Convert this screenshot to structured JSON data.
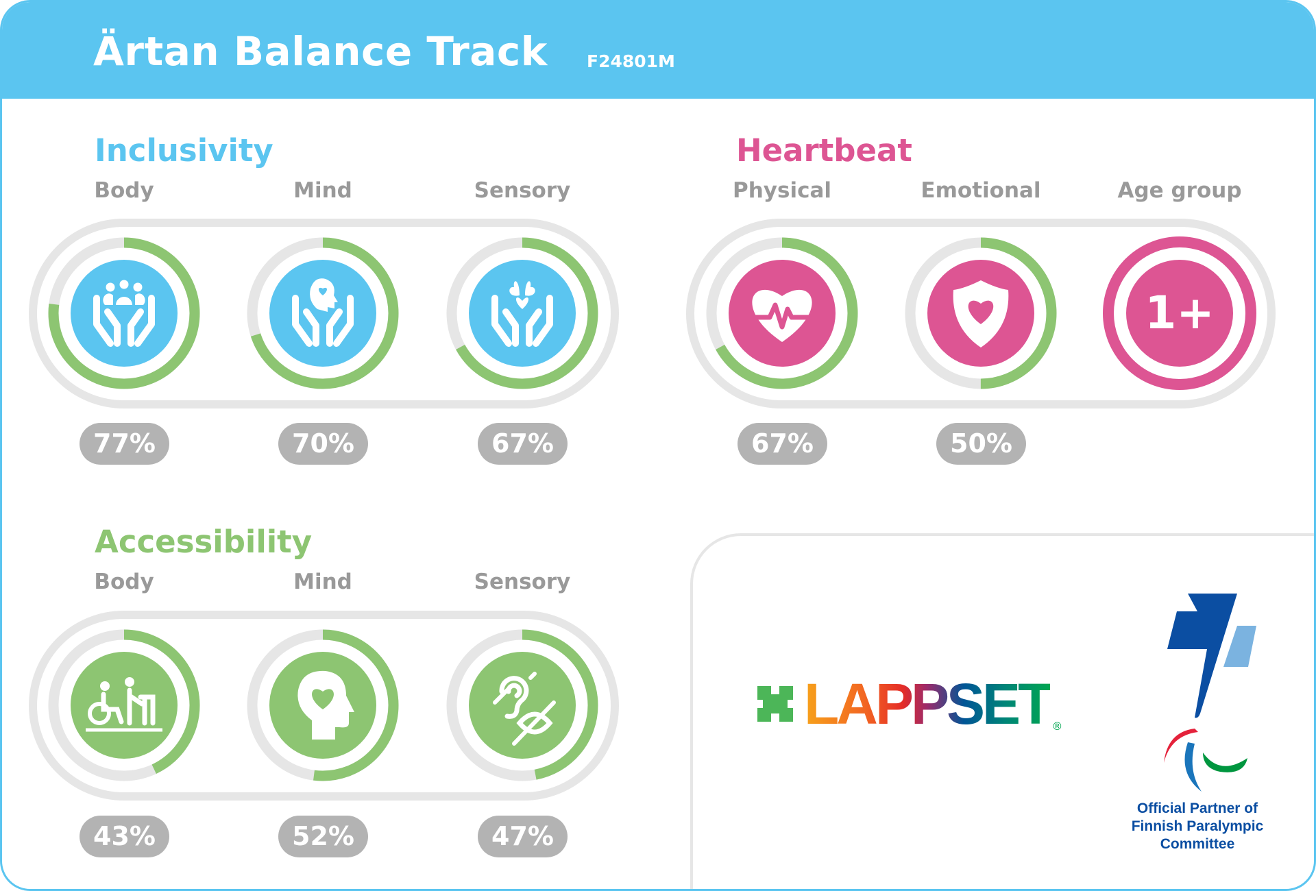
{
  "header": {
    "title": "Ärtan Balance Track",
    "code": "F24801M"
  },
  "colors": {
    "blue": "#5BC5F0",
    "pink": "#DD5593",
    "green": "#8DC572",
    "track": "#E6E6E6",
    "badge": "#B3B3B3",
    "label": "#999999"
  },
  "inclusivity": {
    "title": "Inclusivity",
    "items": [
      {
        "label": "Body",
        "percent": "77%",
        "value": 77,
        "icon": "hands-people-icon"
      },
      {
        "label": "Mind",
        "percent": "70%",
        "value": 70,
        "icon": "hands-mind-icon"
      },
      {
        "label": "Sensory",
        "percent": "67%",
        "value": 67,
        "icon": "hands-hearts-icon"
      }
    ]
  },
  "heartbeat": {
    "title": "Heartbeat",
    "items": [
      {
        "label": "Physical",
        "percent": "67%",
        "value": 67,
        "icon": "heart-pulse-icon"
      },
      {
        "label": "Emotional",
        "percent": "50%",
        "value": 50,
        "icon": "shield-heart-icon"
      },
      {
        "label": "Age group",
        "value_text": "1+",
        "icon": "age-badge-icon"
      }
    ]
  },
  "accessibility": {
    "title": "Accessibility",
    "items": [
      {
        "label": "Body",
        "percent": "43%",
        "value": 43,
        "icon": "wheelchair-walker-icon"
      },
      {
        "label": "Mind",
        "percent": "52%",
        "value": 52,
        "icon": "head-heart-icon"
      },
      {
        "label": "Sensory",
        "percent": "47%",
        "value": 47,
        "icon": "ear-eye-crossed-icon"
      }
    ]
  },
  "logos": {
    "lappset": "LAPPSET",
    "partner_lines": [
      "Official Partner of",
      "Finnish Paralympic",
      "Committee"
    ]
  }
}
